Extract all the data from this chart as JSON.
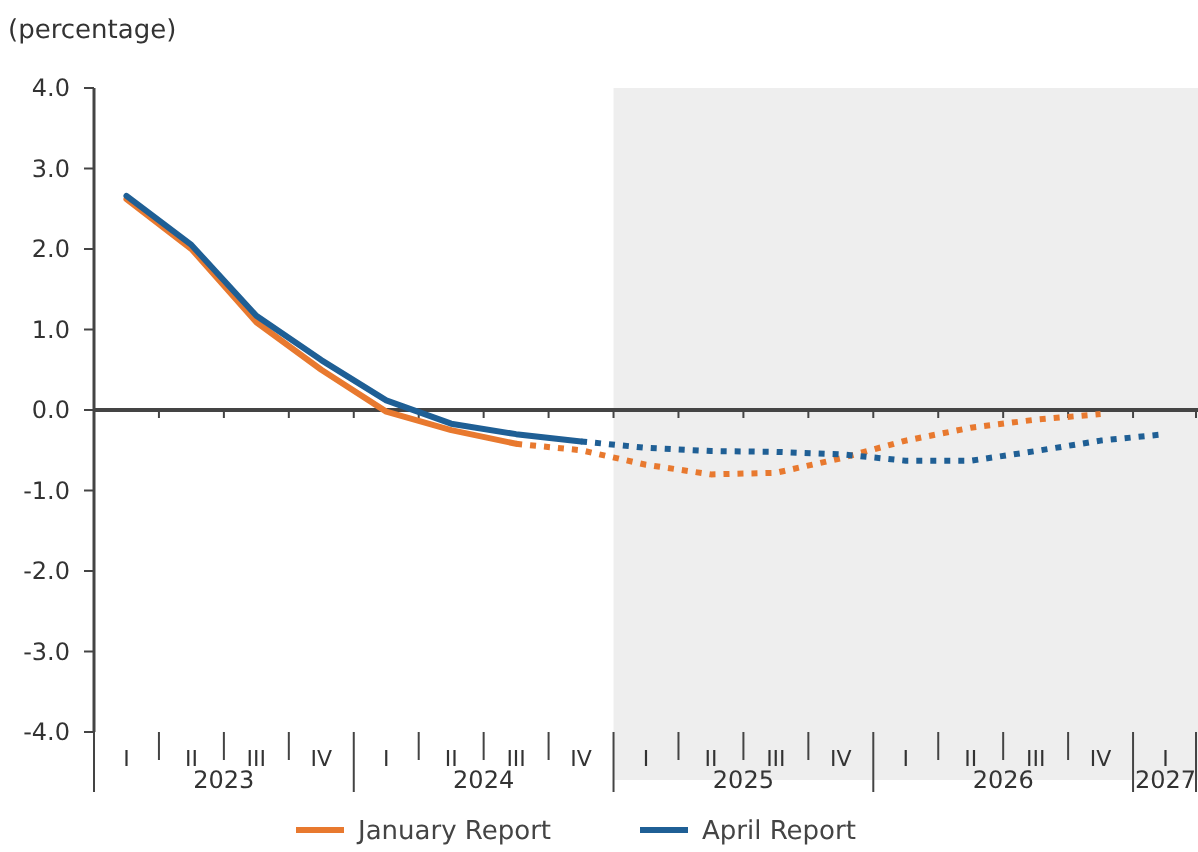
{
  "chart_data": {
    "type": "line",
    "ylabel": "(percentage)",
    "categories": [
      "I",
      "II",
      "III",
      "IV",
      "I",
      "II",
      "III",
      "IV",
      "I",
      "II",
      "III",
      "IV",
      "I",
      "II",
      "III",
      "IV",
      "I"
    ],
    "ylim": [
      -4,
      4
    ],
    "yticks": [
      {
        "value": -4,
        "label": "-4.0"
      },
      {
        "value": -3,
        "label": "-3.0"
      },
      {
        "value": -2,
        "label": "-2.0"
      },
      {
        "value": -1,
        "label": "-1.0"
      },
      {
        "value": 0,
        "label": "0.0"
      },
      {
        "value": 1,
        "label": "1.0"
      },
      {
        "value": 2,
        "label": "2.0"
      },
      {
        "value": 3,
        "label": "3.0"
      },
      {
        "value": 4,
        "label": "4.0"
      }
    ],
    "annotations": [
      "2023",
      "2024",
      "2025",
      "2026",
      "2027"
    ],
    "ref_lines": [
      {
        "axis": "y",
        "value": 0,
        "color": "#444444"
      }
    ],
    "grid": false,
    "legend": "bottom",
    "marker": "none",
    "series": [
      {
        "name": "January Report",
        "color": "#e8792f",
        "line_style": "solid",
        "values": [
          2.62,
          2.0,
          1.09,
          0.5,
          -0.02,
          -0.25,
          -0.42,
          null,
          null,
          null,
          null,
          null,
          null,
          null,
          null,
          null,
          null
        ]
      },
      {
        "color": "#e8792f",
        "line_style": "dotted",
        "values": [
          null,
          null,
          null,
          null,
          null,
          null,
          -0.42,
          -0.5,
          -0.68,
          -0.8,
          -0.78,
          -0.6,
          -0.38,
          -0.22,
          -0.12,
          -0.05,
          null
        ]
      },
      {
        "name": "April Report",
        "color": "#1f5f95",
        "line_style": "solid",
        "values": [
          2.66,
          2.05,
          1.17,
          0.62,
          0.12,
          -0.17,
          -0.3,
          -0.39,
          null,
          null,
          null,
          null,
          null,
          null,
          null,
          null,
          null
        ]
      },
      {
        "color": "#1f5f95",
        "line_style": "dotted",
        "values": [
          null,
          null,
          null,
          null,
          null,
          null,
          null,
          -0.39,
          -0.47,
          -0.51,
          -0.52,
          -0.55,
          -0.63,
          -0.63,
          -0.51,
          -0.38,
          -0.3
        ]
      }
    ]
  }
}
